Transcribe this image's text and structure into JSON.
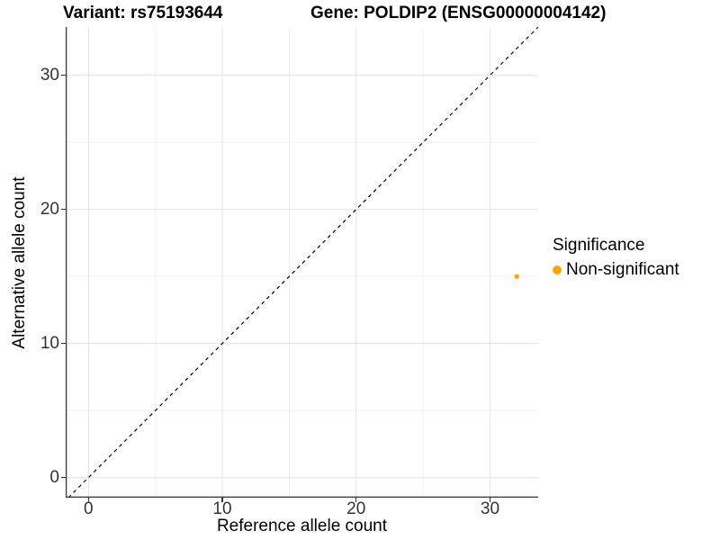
{
  "title": {
    "variant": "Variant: rs75193644",
    "gene": "Gene: POLDIP2 (ENSG00000004142)"
  },
  "legend": {
    "title": "Significance",
    "items": [
      {
        "label": "Non-significant",
        "color": "#FFA500"
      }
    ]
  },
  "colors": {
    "point": "#FFA500",
    "axis_line": "#404040",
    "tick_label": "#333333",
    "grid_major": "#E6E6E6",
    "grid_minor": "#F2F2F2",
    "reference_line": "#000000"
  },
  "chart_data": {
    "type": "scatter",
    "title": "Variant: rs75193644  Gene: POLDIP2 (ENSG00000004142)",
    "xlabel": "Reference allele count",
    "ylabel": "Alternative allele count",
    "xlim": [
      -1.7,
      33.6
    ],
    "ylim": [
      -1.5,
      33.6
    ],
    "x_ticks": [
      0,
      10,
      20,
      30
    ],
    "y_ticks": [
      0,
      10,
      20,
      30
    ],
    "x_minor": [
      5,
      15,
      25
    ],
    "y_minor": [
      5,
      15,
      25
    ],
    "grid": true,
    "legend_position": "right",
    "reference_line": {
      "type": "identity y=x",
      "style": "dashed",
      "color": "#000000"
    },
    "series": [
      {
        "name": "Non-significant",
        "color": "#FFA500",
        "points": [
          {
            "x": 32,
            "y": 15
          }
        ]
      }
    ]
  }
}
